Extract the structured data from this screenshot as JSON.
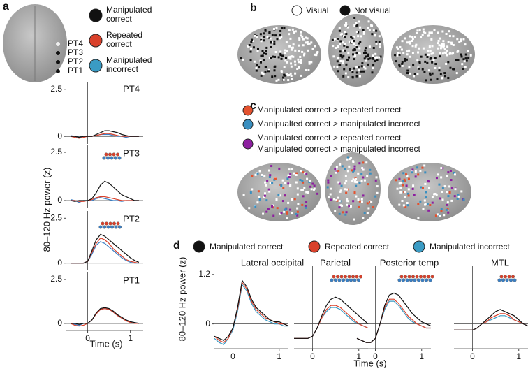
{
  "panel_labels": [
    "a",
    "b",
    "c",
    "d"
  ],
  "panel_a": {
    "electrodes": [
      "PT4",
      "PT3",
      "PT2",
      "PT1"
    ],
    "legend": [
      {
        "name": "Manipulated correct",
        "color": "#111111"
      },
      {
        "name": "Repeated correct",
        "color": "#d9412b"
      },
      {
        "name": "Manipulated incorrect",
        "color": "#3a9bc4"
      }
    ],
    "ylabel": "80–120 Hz power (z)",
    "xlabel": "Time (s)"
  },
  "panel_b": {
    "legend": [
      {
        "name": "Visual",
        "color": "#ffffff"
      },
      {
        "name": "Not visual",
        "color": "#111111"
      }
    ]
  },
  "panel_c": {
    "legend": [
      {
        "lines": [
          "Manipulated correct > repeated correct"
        ],
        "color": "#e4522f"
      },
      {
        "lines": [
          "Manipualted correct > manipulated incorrect"
        ],
        "color": "#3a8fc0"
      },
      {
        "lines": [
          "Manipulated correct > repeated correct",
          "Manipulated correct > manipulated incorrect"
        ],
        "color": "#8d1fa0"
      }
    ]
  },
  "panel_d": {
    "legend": [
      {
        "name": "Manipulated correct",
        "color": "#111111"
      },
      {
        "name": "Repeated correct",
        "color": "#d9412b"
      },
      {
        "name": "Manipulated incorrect",
        "color": "#3a9bc4"
      }
    ],
    "ylabel": "80–120 Hz power (z)",
    "xlabel": "Time (s)"
  },
  "chart_data": [
    {
      "type": "line",
      "title": "PT4",
      "x": [
        -0.4,
        -0.3,
        -0.2,
        -0.1,
        0,
        0.1,
        0.2,
        0.3,
        0.4,
        0.5,
        0.6,
        0.7,
        0.8,
        0.9,
        1.0,
        1.1,
        1.2
      ],
      "xlim": [
        -0.5,
        1.3
      ],
      "ylim": [
        -0.4,
        2.9
      ],
      "yticks": [
        0,
        2.5
      ],
      "series": [
        {
          "color": "#111111",
          "values": [
            0,
            0,
            -0.05,
            0,
            0,
            0,
            0.1,
            0.2,
            0.3,
            0.3,
            0.25,
            0.2,
            0.1,
            0.05,
            0,
            0,
            0
          ]
        },
        {
          "color": "#d9412b",
          "values": [
            0,
            -0.05,
            -0.1,
            -0.05,
            0,
            0,
            0.05,
            0.1,
            0.15,
            0.15,
            0.1,
            0.05,
            0,
            0,
            0,
            0,
            0
          ]
        },
        {
          "color": "#3a7fc4",
          "values": [
            0.05,
            0,
            -0.05,
            0,
            0,
            0,
            0.05,
            0.1,
            0.1,
            0.1,
            0.05,
            0,
            0,
            -0.05,
            0,
            0,
            0
          ]
        }
      ]
    },
    {
      "type": "line",
      "title": "PT3",
      "x": [
        -0.4,
        -0.3,
        -0.2,
        -0.1,
        0,
        0.1,
        0.2,
        0.3,
        0.4,
        0.5,
        0.6,
        0.7,
        0.8,
        0.9,
        1.0,
        1.1,
        1.2
      ],
      "xlim": [
        -0.5,
        1.3
      ],
      "ylim": [
        -0.4,
        2.9
      ],
      "yticks": [
        0,
        2.5
      ],
      "series": [
        {
          "color": "#111111",
          "values": [
            0,
            -0.05,
            0,
            0,
            0,
            0.1,
            0.4,
            0.8,
            1.0,
            0.9,
            0.7,
            0.5,
            0.3,
            0.2,
            0.1,
            0,
            0
          ]
        },
        {
          "color": "#d9412b",
          "values": [
            0,
            0,
            -0.05,
            -0.05,
            0,
            0.05,
            0.15,
            0.2,
            0.2,
            0.15,
            0.1,
            0.05,
            0,
            0,
            0,
            0,
            0
          ]
        },
        {
          "color": "#3a7fc4",
          "values": [
            0.05,
            0,
            -0.1,
            0,
            0,
            0,
            0.1,
            0.15,
            0.1,
            0.05,
            0,
            0,
            -0.05,
            0,
            0,
            0,
            0
          ]
        }
      ]
    },
    {
      "type": "line",
      "title": "PT2",
      "x": [
        -0.4,
        -0.3,
        -0.2,
        -0.1,
        0,
        0.1,
        0.2,
        0.3,
        0.4,
        0.5,
        0.6,
        0.7,
        0.8,
        0.9,
        1.0,
        1.1,
        1.2
      ],
      "xlim": [
        -0.5,
        1.3
      ],
      "ylim": [
        -0.4,
        2.9
      ],
      "yticks": [
        0,
        2.5
      ],
      "series": [
        {
          "color": "#111111",
          "values": [
            0,
            0,
            0,
            0,
            0.1,
            0.7,
            1.3,
            1.6,
            1.5,
            1.3,
            1.1,
            0.9,
            0.7,
            0.5,
            0.3,
            0.15,
            0.05
          ]
        },
        {
          "color": "#d9412b",
          "values": [
            0,
            0,
            0,
            0,
            0.1,
            0.6,
            1.1,
            1.4,
            1.3,
            1.1,
            0.8,
            0.6,
            0.4,
            0.2,
            0.1,
            0.05,
            0
          ]
        },
        {
          "color": "#3a7fc4",
          "values": [
            0,
            0,
            0,
            0,
            0.1,
            0.5,
            1.0,
            1.2,
            1.1,
            0.9,
            0.7,
            0.5,
            0.3,
            0.15,
            0.05,
            0,
            0
          ]
        }
      ]
    },
    {
      "type": "line",
      "title": "PT1",
      "x": [
        -0.4,
        -0.3,
        -0.2,
        -0.1,
        0,
        0.1,
        0.2,
        0.3,
        0.4,
        0.5,
        0.6,
        0.7,
        0.8,
        0.9,
        1.0,
        1.1,
        1.2
      ],
      "xlim": [
        -0.5,
        1.3
      ],
      "ylim": [
        -0.4,
        2.9
      ],
      "yticks": [
        0,
        2.5
      ],
      "xticks": [
        0,
        1
      ],
      "series": [
        {
          "color": "#111111",
          "values": [
            0,
            0,
            -0.05,
            0,
            0,
            0.2,
            0.6,
            0.85,
            0.9,
            0.85,
            0.7,
            0.5,
            0.35,
            0.2,
            0.1,
            0.05,
            0
          ]
        },
        {
          "color": "#d9412b",
          "values": [
            0,
            -0.1,
            -0.15,
            -0.1,
            0,
            0.2,
            0.55,
            0.8,
            0.85,
            0.8,
            0.65,
            0.45,
            0.3,
            0.15,
            0.05,
            0,
            0
          ]
        },
        {
          "color": "#3a7fc4",
          "values": [
            0,
            -0.05,
            -0.1,
            0,
            0,
            0.2,
            0.55,
            0.8,
            0.85,
            0.8,
            0.65,
            0.45,
            0.3,
            0.2,
            0.1,
            0.05,
            0
          ]
        }
      ]
    },
    {
      "type": "line",
      "title": "Lateral occipital",
      "x": [
        -0.4,
        -0.3,
        -0.2,
        -0.1,
        0,
        0.1,
        0.2,
        0.3,
        0.4,
        0.5,
        0.6,
        0.7,
        0.8,
        0.9,
        1.0,
        1.1,
        1.2
      ],
      "xlim": [
        -0.4,
        1.2
      ],
      "ylim": [
        -0.6,
        1.4
      ],
      "yticks": [
        0,
        1.2
      ],
      "xticks": [
        0,
        1
      ],
      "series": [
        {
          "color": "#111111",
          "values": [
            -0.3,
            -0.35,
            -0.4,
            -0.3,
            -0.1,
            0.4,
            1.05,
            0.9,
            0.6,
            0.4,
            0.3,
            0.2,
            0.1,
            0.05,
            0.05,
            0,
            -0.05
          ]
        },
        {
          "color": "#d9412b",
          "values": [
            -0.3,
            -0.4,
            -0.45,
            -0.35,
            -0.1,
            0.35,
            1.0,
            0.85,
            0.55,
            0.35,
            0.25,
            0.15,
            0.1,
            0.05,
            0,
            0,
            -0.05
          ]
        },
        {
          "color": "#3a9bc4",
          "values": [
            -0.35,
            -0.45,
            -0.5,
            -0.35,
            -0.15,
            0.3,
            0.95,
            0.8,
            0.5,
            0.3,
            0.2,
            0.1,
            0.05,
            0,
            0,
            -0.05,
            -0.05
          ]
        }
      ]
    },
    {
      "type": "line",
      "title": "Parietal",
      "x": [
        -0.4,
        -0.3,
        -0.2,
        -0.1,
        0,
        0.1,
        0.2,
        0.3,
        0.4,
        0.5,
        0.6,
        0.7,
        0.8,
        0.9,
        1.0,
        1.1,
        1.2
      ],
      "xlim": [
        -0.4,
        1.2
      ],
      "ylim": [
        -0.6,
        1.4
      ],
      "xticks": [
        0,
        1
      ],
      "series": [
        {
          "color": "#111111",
          "values": [
            -0.35,
            -0.35,
            -0.35,
            -0.35,
            -0.3,
            -0.1,
            0.2,
            0.45,
            0.6,
            0.65,
            0.6,
            0.5,
            0.4,
            0.3,
            0.2,
            0.1,
            0
          ]
        },
        {
          "color": "#d9412b",
          "values": [
            -0.35,
            -0.35,
            -0.35,
            -0.35,
            -0.3,
            -0.1,
            0.15,
            0.35,
            0.45,
            0.45,
            0.4,
            0.3,
            0.2,
            0.1,
            0,
            -0.05,
            -0.1
          ]
        },
        {
          "color": "#3a9bc4",
          "values": [
            -0.35,
            -0.35,
            -0.35,
            -0.35,
            -0.3,
            -0.1,
            0.15,
            0.3,
            0.4,
            0.4,
            0.35,
            0.25,
            0.15,
            0.05,
            0,
            -0.05,
            -0.1
          ]
        }
      ]
    },
    {
      "type": "line",
      "title": "Posterior temp",
      "x": [
        -0.4,
        -0.3,
        -0.2,
        -0.1,
        0,
        0.1,
        0.2,
        0.3,
        0.4,
        0.5,
        0.6,
        0.7,
        0.8,
        0.9,
        1.0,
        1.1,
        1.2
      ],
      "xlim": [
        -0.4,
        1.2
      ],
      "ylim": [
        -0.6,
        1.4
      ],
      "xticks": [
        0,
        1
      ],
      "series": [
        {
          "color": "#111111",
          "values": [
            -0.35,
            -0.4,
            -0.45,
            -0.45,
            -0.35,
            0,
            0.45,
            0.7,
            0.75,
            0.7,
            0.55,
            0.4,
            0.25,
            0.15,
            0.05,
            0,
            -0.05
          ]
        },
        {
          "color": "#d9412b",
          "values": [
            -0.35,
            -0.4,
            -0.45,
            -0.45,
            -0.35,
            0,
            0.4,
            0.6,
            0.6,
            0.5,
            0.35,
            0.2,
            0.1,
            0,
            -0.05,
            -0.1,
            -0.1
          ]
        },
        {
          "color": "#3a9bc4",
          "values": [
            -0.35,
            -0.4,
            -0.45,
            -0.45,
            -0.35,
            0,
            0.35,
            0.55,
            0.55,
            0.45,
            0.3,
            0.15,
            0.05,
            0,
            -0.05,
            -0.1,
            -0.1
          ]
        }
      ]
    },
    {
      "type": "line",
      "title": "MTL",
      "x": [
        -0.4,
        -0.3,
        -0.2,
        -0.1,
        0,
        0.1,
        0.2,
        0.3,
        0.4,
        0.5,
        0.6,
        0.7,
        0.8,
        0.9,
        1.0,
        1.1,
        1.2
      ],
      "xlim": [
        -0.4,
        1.2
      ],
      "ylim": [
        -0.6,
        1.4
      ],
      "xticks": [
        0,
        1
      ],
      "series": [
        {
          "color": "#111111",
          "values": [
            -0.15,
            -0.15,
            -0.15,
            -0.15,
            -0.15,
            -0.1,
            0,
            0.1,
            0.2,
            0.3,
            0.35,
            0.3,
            0.25,
            0.2,
            0.1,
            0,
            -0.05
          ]
        },
        {
          "color": "#d9412b",
          "values": [
            -0.15,
            -0.15,
            -0.15,
            -0.15,
            -0.15,
            -0.1,
            0,
            0.05,
            0.15,
            0.2,
            0.25,
            0.25,
            0.2,
            0.1,
            0.05,
            0,
            -0.05
          ]
        },
        {
          "color": "#3a9bc4",
          "values": [
            -0.15,
            -0.15,
            -0.15,
            -0.15,
            -0.15,
            -0.1,
            0,
            0.05,
            0.1,
            0.15,
            0.2,
            0.2,
            0.15,
            0.1,
            0.05,
            0,
            -0.05
          ]
        }
      ]
    }
  ]
}
